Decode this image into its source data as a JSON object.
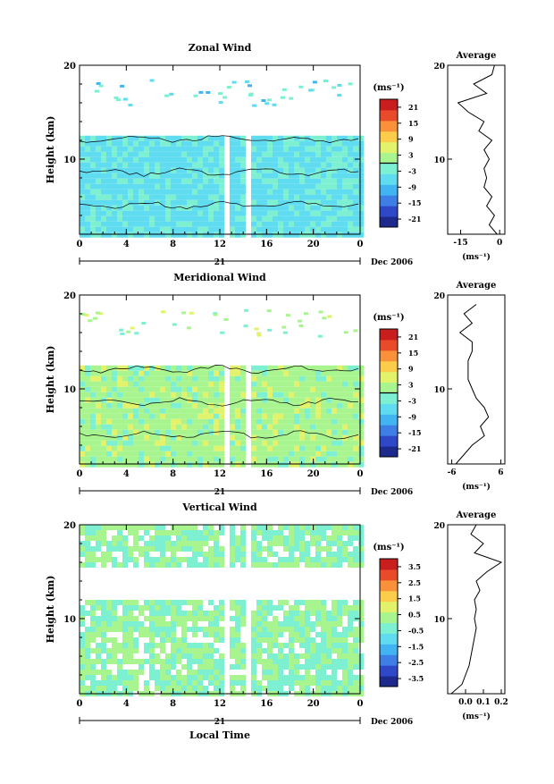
{
  "colors": {
    "palette": [
      "#1d2a8c",
      "#2e48c8",
      "#3e7fe6",
      "#43b4f2",
      "#5fdcf0",
      "#7df0d2",
      "#a8f590",
      "#e2f26a",
      "#fbcd4a",
      "#f8913a",
      "#e84a2a",
      "#c81e1e"
    ],
    "contour": "#000000",
    "axis": "#000000"
  },
  "chart_data": [
    {
      "type": "heatmap",
      "title": "Zonal Wind",
      "ylabel": "Height (km)",
      "xlabel": "",
      "x_ticks": [
        "0",
        "4",
        "8",
        "12",
        "16",
        "20",
        "0"
      ],
      "y_ticks": [
        "20",
        "10"
      ],
      "ylim": [
        2,
        20
      ],
      "xlim": [
        0,
        24
      ],
      "date_day": "21",
      "date_label": "Dec 2006",
      "colorbar": {
        "unit": "(ms⁻¹)",
        "ticks": [
          "21",
          "15",
          "9",
          "3",
          "-3",
          "-9",
          "-15",
          "-21"
        ],
        "range": [
          -24,
          24
        ],
        "contour_level": 0
      },
      "data_gaps_local_time": [
        [
          12.4,
          12.6
        ],
        [
          14.1,
          14.3
        ]
      ],
      "data_top_km": 12.5,
      "approx_value_ms": -5,
      "average": {
        "title": "Average",
        "unit": "(ms⁻¹)",
        "x_ticks": [
          "-15",
          "0"
        ],
        "xlim": [
          -20,
          2
        ],
        "profile": {
          "y": [
            2,
            3,
            4,
            5,
            6,
            7,
            8,
            9,
            10,
            11,
            12,
            13,
            14,
            15,
            16,
            17,
            18,
            19,
            20
          ],
          "x": [
            -1,
            -4,
            -2,
            -5,
            -3,
            -6,
            -5,
            -6,
            -4,
            -6,
            -3,
            -8,
            -6,
            -12,
            -16,
            -5,
            -10,
            -3,
            -2
          ]
        }
      }
    },
    {
      "type": "heatmap",
      "title": "Meridional Wind",
      "ylabel": "Height (km)",
      "xlabel": "",
      "x_ticks": [
        "0",
        "4",
        "8",
        "12",
        "16",
        "20",
        "0"
      ],
      "y_ticks": [
        "20",
        "10"
      ],
      "ylim": [
        2,
        20
      ],
      "xlim": [
        0,
        24
      ],
      "date_day": "21",
      "date_label": "Dec 2006",
      "colorbar": {
        "unit": "(ms⁻¹)",
        "ticks": [
          "21",
          "15",
          "9",
          "3",
          "-3",
          "-9",
          "-15",
          "-21"
        ],
        "range": [
          -24,
          24
        ],
        "contour_level": 0
      },
      "data_gaps_local_time": [
        [
          12.4,
          12.6
        ],
        [
          14.1,
          14.3
        ]
      ],
      "data_top_km": 12.5,
      "approx_value_ms": 2,
      "average": {
        "title": "Average",
        "unit": "(ms⁻¹)",
        "x_ticks": [
          "-6",
          "6"
        ],
        "xlim": [
          -7,
          7
        ],
        "profile": {
          "y": [
            2,
            3,
            4,
            5,
            6,
            7,
            8,
            9,
            10,
            11,
            12,
            13,
            14,
            15,
            16,
            17,
            18,
            19
          ],
          "x": [
            -5,
            -3,
            -1,
            2,
            1,
            3,
            2,
            0,
            -1,
            -2,
            -2,
            -2,
            -1,
            -1,
            -4,
            -1,
            -3,
            0
          ]
        }
      }
    },
    {
      "type": "heatmap",
      "title": "Vertical Wind",
      "ylabel": "Height (km)",
      "xlabel": "Local Time",
      "x_ticks": [
        "0",
        "4",
        "8",
        "12",
        "16",
        "20",
        "0"
      ],
      "y_ticks": [
        "20",
        "10"
      ],
      "ylim": [
        2,
        20
      ],
      "xlim": [
        0,
        24
      ],
      "date_day": "21",
      "date_label": "Dec 2006",
      "colorbar": {
        "unit": "(ms⁻¹)",
        "ticks": [
          "3.5",
          "2.5",
          "1.5",
          "0.5",
          "-0.5",
          "-1.5",
          "-2.5",
          "-3.5"
        ],
        "range": [
          -4,
          4
        ],
        "contour_level": null
      },
      "data_gaps_local_time": [
        [
          12.4,
          12.6
        ],
        [
          14.1,
          14.3
        ]
      ],
      "data_top_km": 20,
      "approx_value_ms": 0,
      "average": {
        "title": "Average",
        "unit": "(ms⁻¹)",
        "x_ticks": [
          "0.0",
          "0.1",
          "0.2"
        ],
        "xlim": [
          -0.1,
          0.22
        ],
        "profile": {
          "y": [
            2,
            3,
            4,
            5,
            6,
            7,
            8,
            9,
            10,
            11,
            12,
            13,
            14,
            15,
            16,
            17,
            18,
            19,
            20
          ],
          "x": [
            -0.08,
            -0.02,
            0.0,
            0.02,
            0.03,
            0.04,
            0.05,
            0.06,
            0.05,
            0.06,
            0.05,
            0.08,
            0.06,
            0.12,
            0.2,
            0.05,
            0.1,
            0.03,
            0.06
          ]
        }
      }
    }
  ]
}
